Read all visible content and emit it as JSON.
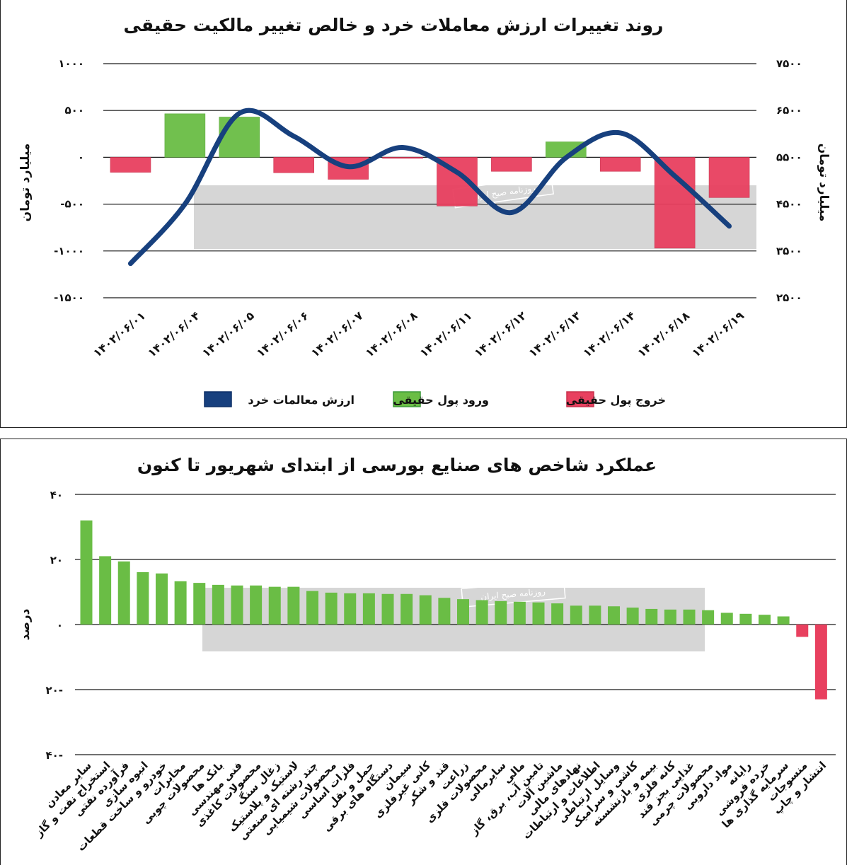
{
  "colors": {
    "line": "#17407e",
    "inflow": "#6abd45",
    "outflow": "#e8405f",
    "watermark_band": "#cfcfcf",
    "axis": "#1a1a1a"
  },
  "chart_data": [
    {
      "type": "bar+line",
      "title": "روند تغییرات ارزش معاملات خرد و خالص تغییر مالکیت حقیقی",
      "ylabel_left": "میلیارد تومان",
      "ylabel_right": "میلیارد تومان",
      "ylim_left": [
        -1500,
        1000
      ],
      "ylim_right": [
        2500,
        7500
      ],
      "yticks_left": [
        1000,
        500,
        0,
        -500,
        -1000,
        -1500
      ],
      "ytick_labels_left": [
        "۱۰۰۰",
        "۵۰۰",
        "۰",
        "-۵۰۰",
        "-۱۰۰۰",
        "-۱۵۰۰"
      ],
      "yticks_right": [
        7500,
        6500,
        5500,
        4500,
        3500,
        2500
      ],
      "ytick_labels_right": [
        "۷۵۰۰",
        "۶۵۰۰",
        "۵۵۰۰",
        "۴۵۰۰",
        "۳۵۰۰",
        "۲۵۰۰"
      ],
      "grid": true,
      "categories": [
        "۱۴۰۲/۰۶/۰۱",
        "۱۴۰۲/۰۶/۰۴",
        "۱۴۰۲/۰۶/۰۵",
        "۱۴۰۲/۰۶/۰۶",
        "۱۴۰۲/۰۶/۰۷",
        "۱۴۰۲/۰۶/۰۸",
        "۱۴۰۲/۰۶/۱۱",
        "۱۴۰۲/۰۶/۱۲",
        "۱۴۰۲/۰۶/۱۳",
        "۱۴۰۲/۰۶/۱۴",
        "۱۴۰۲/۰۶/۱۸",
        "۱۴۰۲/۰۶/۱۹"
      ],
      "series": [
        {
          "name": "ارزش معالمات خرد",
          "kind": "line",
          "axis": "right",
          "values": [
            3230,
            4500,
            6440,
            5950,
            5300,
            5710,
            5180,
            4320,
            5490,
            6020,
            5100,
            4030
          ]
        },
        {
          "name": "ورود پول حقیقی / خروج پول حقیقی",
          "kind": "bar",
          "axis": "left",
          "values": [
            -160,
            465,
            430,
            -165,
            -235,
            -10,
            -520,
            -150,
            165,
            -150,
            -970,
            -430
          ]
        }
      ],
      "legend": [
        {
          "label": "خروج پول حقیقی",
          "color_key": "outflow"
        },
        {
          "label": "ورود پول حقیقی",
          "color_key": "inflow"
        },
        {
          "label": "ارزش معالمات خرد",
          "color_key": "line"
        }
      ],
      "legend_position": "bottom"
    },
    {
      "type": "bar",
      "title": "عملکرد شاخص های صنایع بورسی از ابتدای شهریور تا کنون",
      "ylabel": "درصد",
      "ylim": [
        -40,
        40
      ],
      "yticks": [
        40,
        20,
        0,
        -20,
        -40
      ],
      "ytick_labels": [
        "۴۰",
        "۲۰",
        "۰",
        "۲۰-",
        "۴۰-"
      ],
      "grid": true,
      "categories": [
        "سایر معادن",
        "استخراج نفت و گاز",
        "فرآورده نفتی",
        "انبوه سازی",
        "خودرو و ساخت قطعات",
        "مخابرات",
        "محصولات چوبی",
        "بانک ها",
        "فنی مهندسی",
        "محصولات کاغذی",
        "زغال سنگ",
        "لاستیک و پلاستیک",
        "چند رشته ای صنعتی",
        "محصولات شیمیایی",
        "فلزات اساسی",
        "حمل و نقل",
        "دستگاه های برقی",
        "سیمان",
        "کانی غیرفلزی",
        "قند و شکر",
        "زراعت",
        "محصولات فلزی",
        "سایرمالی",
        "مالی",
        "تامین آب، برق، گاز",
        "ماشین آلات",
        "نهادهای مالی",
        "اطلاعات و ارتباطات",
        "وسایل ارتباطی",
        "کاشی و سرامیک",
        "بیمه و بازنشسته",
        "کانه فلزی",
        "غذایی بجز قند",
        "محصولات چرمی",
        "مواد داروبی",
        "رایانه",
        "خرده فروشی",
        "سرمایه گذاری ها",
        "منسوجات",
        "انتشار و چاپ"
      ],
      "values": [
        32,
        21,
        19.4,
        16.1,
        15.7,
        13.3,
        12.8,
        12.2,
        12,
        12,
        11.6,
        11.6,
        10.3,
        9.8,
        9.6,
        9.6,
        9.4,
        9.4,
        9,
        8.2,
        7.8,
        7.5,
        7.2,
        7,
        6.8,
        6.5,
        5.8,
        5.8,
        5.6,
        5.2,
        4.8,
        4.6,
        4.6,
        4.4,
        3.6,
        3.3,
        3,
        2.5,
        -3.8,
        -23
      ]
    }
  ],
  "watermark": {
    "text": "روزنامه صبح ایران",
    "logo_text": "دنیای اقتصاد"
  }
}
